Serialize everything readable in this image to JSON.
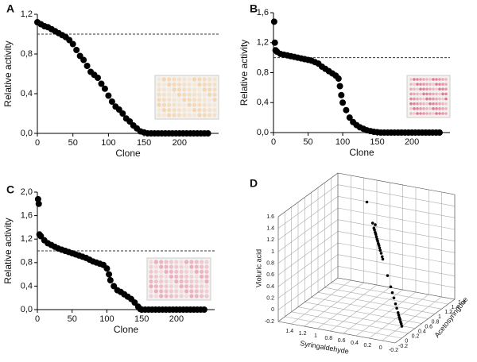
{
  "chart_data": [
    {
      "type": "scatter",
      "panel": "A",
      "xlabel": "Clone",
      "ylabel": "Relative activity",
      "color": "#000000",
      "threshold": 1,
      "inset_color": "#f3d2ab",
      "x": [
        0,
        5,
        10,
        15,
        20,
        25,
        30,
        35,
        40,
        45,
        50,
        55,
        60,
        65,
        70,
        75,
        80,
        85,
        90,
        95,
        100,
        105,
        110,
        115,
        120,
        125,
        130,
        135,
        140,
        145,
        150,
        155,
        160,
        165,
        170,
        175,
        180,
        185,
        190,
        195,
        200,
        205,
        210,
        215,
        220,
        225,
        230,
        235,
        240
      ],
      "values": [
        1.12,
        1.1,
        1.08,
        1.07,
        1.05,
        1.03,
        1.01,
        0.99,
        0.97,
        0.94,
        0.9,
        0.84,
        0.78,
        0.74,
        0.68,
        0.62,
        0.59,
        0.56,
        0.5,
        0.45,
        0.38,
        0.32,
        0.27,
        0.24,
        0.2,
        0.15,
        0.12,
        0.08,
        0.05,
        0.02,
        0.01,
        0,
        0,
        0,
        0,
        0,
        0,
        0,
        0,
        0,
        0,
        0,
        0,
        0,
        0,
        0,
        0,
        0,
        0
      ],
      "xlim": [
        0,
        255
      ],
      "xticks": [
        0,
        50,
        100,
        150,
        200
      ],
      "ylim": [
        0,
        1.2
      ],
      "yticks": [
        {
          "value": 0,
          "label": "0,0"
        },
        {
          "value": 0.4,
          "label": "0,4"
        },
        {
          "value": 0.8,
          "label": "0,8"
        },
        {
          "value": 1.2,
          "label": "1,2"
        }
      ]
    },
    {
      "type": "scatter",
      "panel": "B",
      "xlabel": "Clone",
      "ylabel": "Relative activity",
      "color": "#000000",
      "threshold": 1,
      "inset_color": "#e06088",
      "x": [
        1,
        2,
        3,
        5,
        10,
        15,
        20,
        25,
        30,
        35,
        40,
        45,
        50,
        55,
        60,
        65,
        70,
        75,
        80,
        85,
        90,
        94,
        96,
        98,
        100,
        105,
        110,
        115,
        120,
        125,
        130,
        135,
        140,
        145,
        150,
        155,
        160,
        165,
        170,
        175,
        180,
        185,
        190,
        195,
        200,
        205,
        210,
        215,
        220,
        225,
        230,
        235,
        240
      ],
      "values": [
        1.48,
        1.2,
        1.1,
        1.08,
        1.05,
        1.04,
        1.03,
        1.02,
        1.01,
        1.0,
        0.99,
        0.98,
        0.97,
        0.96,
        0.94,
        0.92,
        0.88,
        0.85,
        0.82,
        0.79,
        0.76,
        0.72,
        0.62,
        0.5,
        0.4,
        0.3,
        0.2,
        0.14,
        0.1,
        0.07,
        0.05,
        0.03,
        0.02,
        0.01,
        0.005,
        0,
        0,
        0,
        0,
        0,
        0,
        0,
        0,
        0,
        0,
        0,
        0,
        0,
        0,
        0,
        0,
        0,
        0
      ],
      "xlim": [
        0,
        255
      ],
      "xticks": [
        0,
        50,
        100,
        150,
        200
      ],
      "ylim": [
        0,
        1.6
      ],
      "yticks": [
        {
          "value": 0,
          "label": "0,0"
        },
        {
          "value": 0.4,
          "label": "0,4"
        },
        {
          "value": 0.8,
          "label": "0,8"
        },
        {
          "value": 1.2,
          "label": "1,2"
        },
        {
          "value": 1.6,
          "label": "1,6"
        }
      ]
    },
    {
      "type": "scatter",
      "panel": "C",
      "xlabel": "Clone",
      "ylabel": "Relative activity",
      "color": "#000000",
      "threshold": 1,
      "inset_color": "#e9a3bb",
      "x": [
        1,
        2,
        3,
        5,
        10,
        15,
        20,
        25,
        30,
        35,
        40,
        45,
        50,
        55,
        60,
        65,
        70,
        75,
        80,
        85,
        90,
        95,
        100,
        103,
        105,
        110,
        115,
        120,
        125,
        130,
        135,
        140,
        145,
        148,
        150,
        155,
        160,
        165,
        170,
        175,
        180,
        185,
        190,
        195,
        200,
        205,
        210,
        215,
        220,
        225,
        230,
        235,
        240
      ],
      "values": [
        1.88,
        1.8,
        1.28,
        1.25,
        1.18,
        1.13,
        1.1,
        1.07,
        1.04,
        1.02,
        1.0,
        0.98,
        0.96,
        0.94,
        0.92,
        0.9,
        0.88,
        0.85,
        0.82,
        0.8,
        0.78,
        0.76,
        0.7,
        0.6,
        0.5,
        0.4,
        0.33,
        0.3,
        0.26,
        0.22,
        0.18,
        0.12,
        0.05,
        0.01,
        0,
        0,
        0,
        0,
        0,
        0,
        0,
        0,
        0,
        0,
        0,
        0,
        0,
        0,
        0,
        0,
        0,
        0,
        0
      ],
      "xlim": [
        0,
        255
      ],
      "xticks": [
        0,
        50,
        100,
        150,
        200
      ],
      "ylim": [
        0,
        2.0
      ],
      "yticks": [
        {
          "value": 0,
          "label": "0,0"
        },
        {
          "value": 0.4,
          "label": "0,4"
        },
        {
          "value": 0.8,
          "label": "0,8"
        },
        {
          "value": 1.2,
          "label": "1,2"
        },
        {
          "value": 1.6,
          "label": "1,6"
        },
        {
          "value": 2.0,
          "label": "2,0"
        }
      ]
    },
    {
      "type": "scatter3d",
      "panel": "D",
      "xlabel": "Syringaldehyde",
      "ylabel": "Acetosyringone",
      "zlabel": "Violuric acid",
      "color": "#000000",
      "x": [
        1.0,
        0.82,
        0.78,
        0.78,
        0.76,
        0.74,
        0.72,
        0.7,
        0.68,
        0.66,
        0.64,
        0.62,
        0.6,
        0.58,
        0.55,
        0.52,
        0.5,
        0.35,
        0.25,
        0.2,
        0.15,
        0.1,
        0.06,
        0.02,
        0.0,
        -0.02,
        -0.04,
        -0.06,
        -0.08,
        -0.1
      ],
      "y": [
        1.3,
        1.12,
        1.12,
        1.08,
        1.06,
        1.04,
        1.02,
        1.0,
        0.98,
        0.96,
        0.94,
        0.92,
        0.9,
        0.88,
        0.85,
        0.82,
        0.8,
        0.65,
        0.55,
        0.5,
        0.45,
        0.4,
        0.36,
        0.32,
        0.3,
        0.28,
        0.26,
        0.24,
        0.22,
        0.2
      ],
      "z": [
        1.35,
        1.1,
        1.08,
        1.04,
        1.02,
        0.99,
        0.97,
        0.94,
        0.91,
        0.89,
        0.86,
        0.84,
        0.81,
        0.78,
        0.75,
        0.71,
        0.68,
        0.49,
        0.36,
        0.29,
        0.23,
        0.16,
        0.11,
        0.06,
        0.03,
        0.0,
        -0.02,
        -0.05,
        -0.07,
        -0.1
      ],
      "xlim": [
        -0.2,
        1.6
      ],
      "xticks": [
        -0.2,
        0,
        0.2,
        0.4,
        0.6,
        0.8,
        1,
        1.2,
        1.4
      ],
      "ylim": [
        -0.2,
        1.6
      ],
      "yticks": [
        -0.2,
        0,
        0.2,
        0.4,
        0.6,
        0.8,
        1,
        1.2,
        1.4,
        1.6
      ],
      "zlim": [
        -0.2,
        1.6
      ],
      "zticks": [
        -0.2,
        0,
        0.2,
        0.4,
        0.6,
        0.8,
        1,
        1.2,
        1.4,
        1.6
      ]
    }
  ]
}
